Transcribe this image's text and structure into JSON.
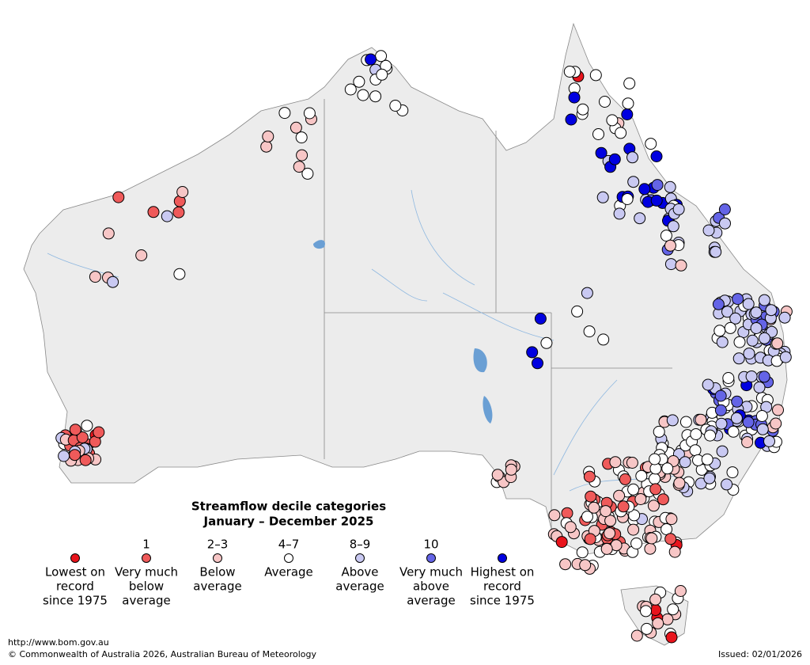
{
  "legend": {
    "title": "Streamflow decile categories",
    "subtitle": "January – December 2025",
    "items": [
      {
        "lines": [
          "Lowest on",
          "record",
          "since 1975"
        ],
        "color": "#e8141c"
      },
      {
        "decile": 1,
        "lines": [
          "Very much",
          "below",
          "average"
        ],
        "color": "#ef5a5a"
      },
      {
        "decile": "2–3",
        "lines": [
          "Below",
          "average"
        ],
        "color": "#f7c6c6"
      },
      {
        "decile": "4–7",
        "lines": [
          "Average"
        ],
        "color": "#ffffff"
      },
      {
        "decile": "8–9",
        "lines": [
          "Above",
          "average"
        ],
        "color": "#c9c9f2"
      },
      {
        "decile": 10,
        "lines": [
          "Very much",
          "above",
          "average"
        ],
        "color": "#6464e6"
      },
      {
        "lines": [
          "Highest on",
          "record",
          "since 1975"
        ],
        "color": "#0000e0"
      }
    ]
  },
  "footer": {
    "url": "http://www.bom.gov.au",
    "copyright": "© Commonwealth of Australia 2026, Australian Bureau of Meteorology",
    "issued": "Issued: 02/01/2026"
  }
}
